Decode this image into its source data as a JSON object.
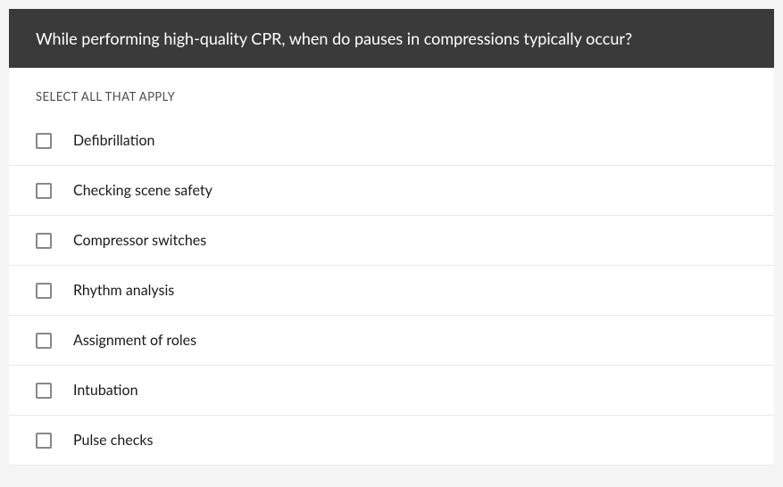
{
  "question": {
    "text": "While performing high-quality CPR, when do pauses in compressions typically occur?",
    "instruction": "SELECT ALL THAT APPLY",
    "header_bg_color": "#3a3a3a",
    "header_text_color": "#ffffff",
    "body_bg_color": "#ffffff",
    "page_bg_color": "#f5f5f5",
    "border_color": "#e8e8e8",
    "checkbox_border_color": "#888888"
  },
  "options": [
    {
      "label": "Defibrillation",
      "checked": false
    },
    {
      "label": "Checking scene safety",
      "checked": false
    },
    {
      "label": "Compressor switches",
      "checked": false
    },
    {
      "label": "Rhythm analysis",
      "checked": false
    },
    {
      "label": "Assignment of roles",
      "checked": false
    },
    {
      "label": "Intubation",
      "checked": false
    },
    {
      "label": "Pulse checks",
      "checked": false
    }
  ]
}
